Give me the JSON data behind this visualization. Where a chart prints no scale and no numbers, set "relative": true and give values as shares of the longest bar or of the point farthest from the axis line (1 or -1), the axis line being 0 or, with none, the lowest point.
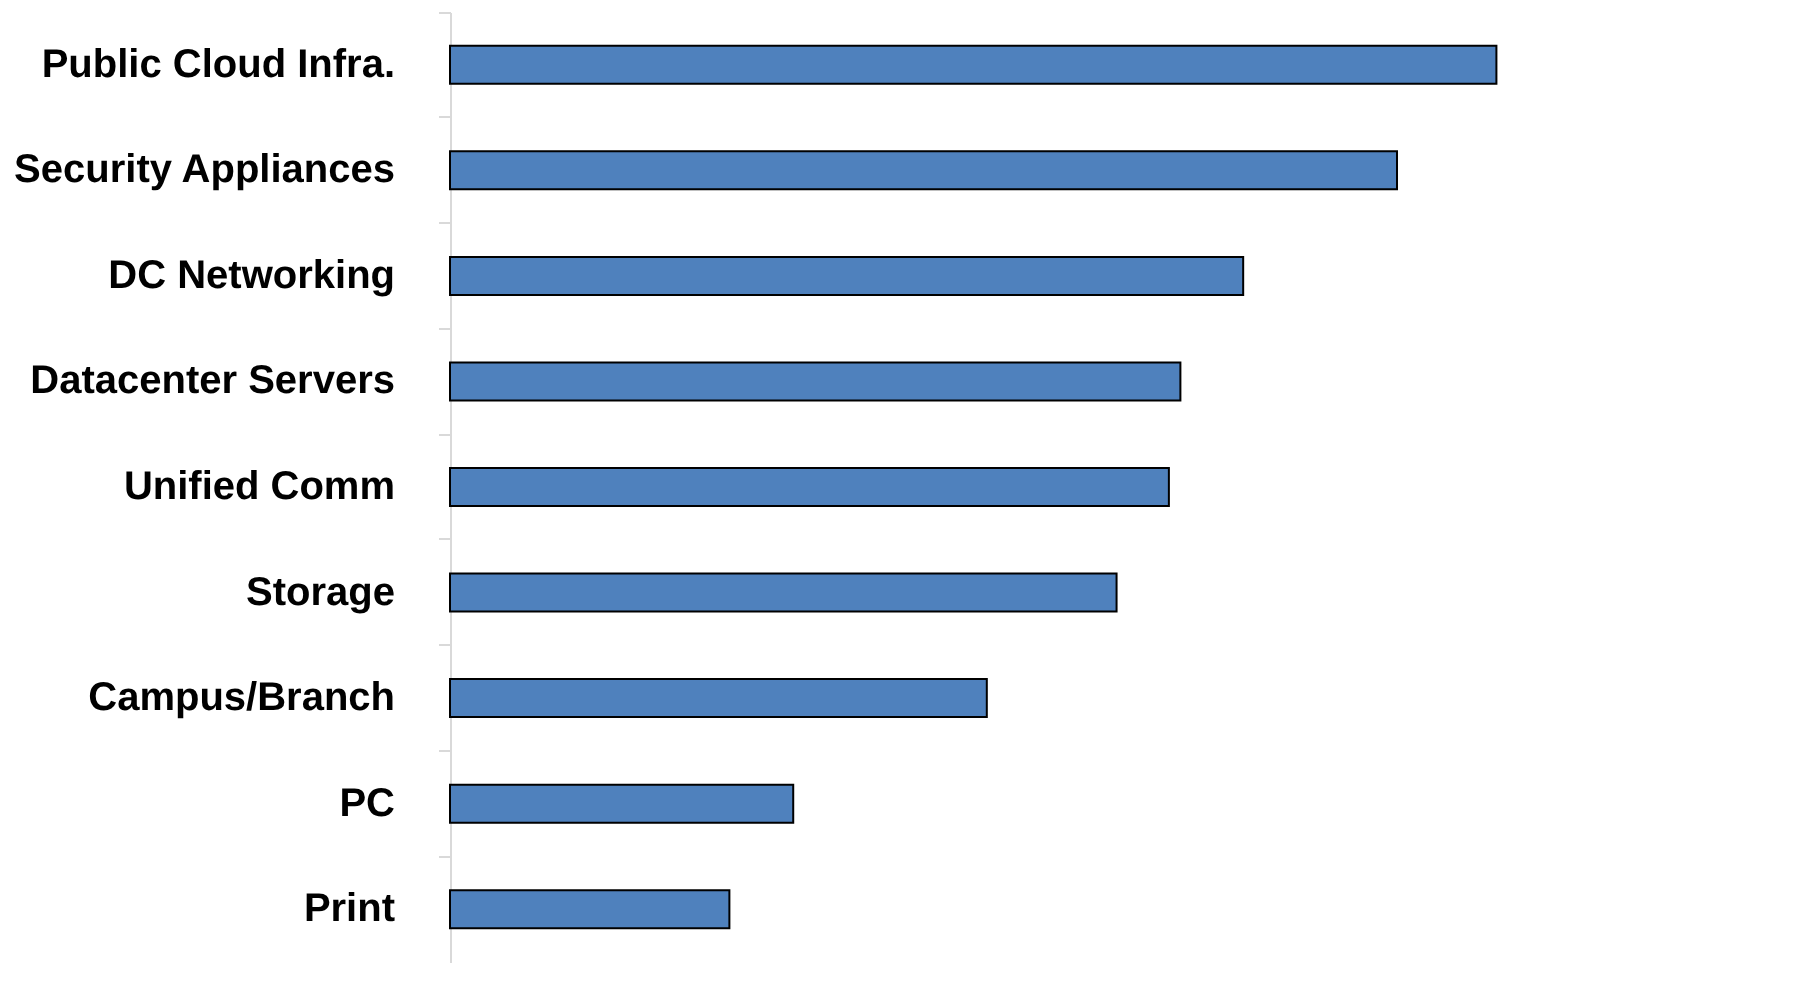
{
  "chart_data": {
    "type": "bar",
    "orientation": "horizontal",
    "relative": true,
    "categories": [
      "Public Cloud Infra.",
      "Security Appliances",
      "DC Networking",
      "Datacenter Servers",
      "Unified Comm",
      "Storage",
      "Campus/Branch",
      "PC",
      "Print"
    ],
    "values": [
      1,
      0.905,
      0.758,
      0.698,
      0.687,
      0.637,
      0.513,
      0.328,
      0.267
    ],
    "color": "#4f81bd"
  }
}
